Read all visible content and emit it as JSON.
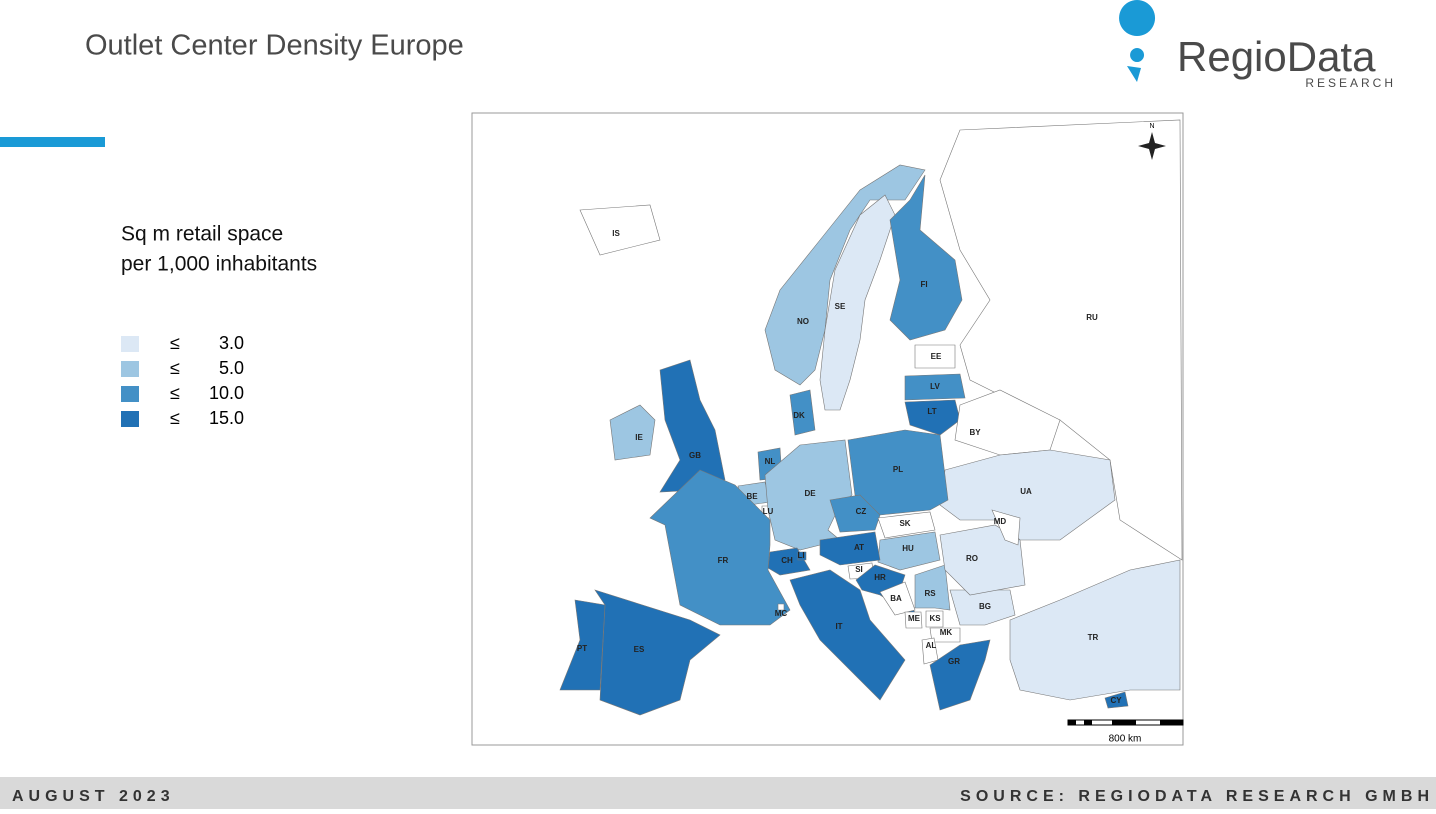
{
  "header": {
    "title": "Outlet Center Density Europe",
    "logo_main": "RegioData",
    "logo_sub": "RESEARCH"
  },
  "legend": {
    "title_lines": [
      "Sq m retail space",
      "per 1,000 inhabitants"
    ],
    "items": [
      {
        "symbol": "≤",
        "value": "3.0",
        "color": "#dce8f5"
      },
      {
        "symbol": "≤",
        "value": "5.0",
        "color": "#9dc6e2"
      },
      {
        "symbol": "≤",
        "value": "10.0",
        "color": "#4390c6"
      },
      {
        "symbol": "≤",
        "value": "15.0",
        "color": "#2171b5"
      }
    ]
  },
  "map": {
    "north": "N",
    "scale": "800 km",
    "countries": [
      {
        "code": "RU",
        "color": "#ffffff"
      },
      {
        "code": "IS",
        "color": "#ffffff"
      },
      {
        "code": "NO",
        "color": "#9dc6e2"
      },
      {
        "code": "SE",
        "color": "#dce8f5"
      },
      {
        "code": "FI",
        "color": "#4390c6"
      },
      {
        "code": "EE",
        "color": "#ffffff"
      },
      {
        "code": "LV",
        "color": "#4390c6"
      },
      {
        "code": "LT",
        "color": "#2171b5"
      },
      {
        "code": "BY",
        "color": "#ffffff"
      },
      {
        "code": "UA",
        "color": "#dce8f5"
      },
      {
        "code": "IE",
        "color": "#9dc6e2"
      },
      {
        "code": "GB",
        "color": "#2171b5"
      },
      {
        "code": "DK",
        "color": "#4390c6"
      },
      {
        "code": "NL",
        "color": "#4390c6"
      },
      {
        "code": "BE",
        "color": "#9dc6e2"
      },
      {
        "code": "LU",
        "color": "#ffffff"
      },
      {
        "code": "DE",
        "color": "#9dc6e2"
      },
      {
        "code": "PL",
        "color": "#4390c6"
      },
      {
        "code": "CZ",
        "color": "#4390c6"
      },
      {
        "code": "SK",
        "color": "#ffffff"
      },
      {
        "code": "HU",
        "color": "#9dc6e2"
      },
      {
        "code": "AT",
        "color": "#2171b5"
      },
      {
        "code": "CH",
        "color": "#2171b5"
      },
      {
        "code": "LI",
        "color": "#2171b5"
      },
      {
        "code": "FR",
        "color": "#4390c6"
      },
      {
        "code": "SI",
        "color": "#ffffff"
      },
      {
        "code": "HR",
        "color": "#2171b5"
      },
      {
        "code": "BA",
        "color": "#ffffff"
      },
      {
        "code": "RS",
        "color": "#9dc6e2"
      },
      {
        "code": "ME",
        "color": "#ffffff"
      },
      {
        "code": "KS",
        "color": "#ffffff"
      },
      {
        "code": "MK",
        "color": "#ffffff"
      },
      {
        "code": "AL",
        "color": "#ffffff"
      },
      {
        "code": "BG",
        "color": "#dce8f5"
      },
      {
        "code": "RO",
        "color": "#dce8f5"
      },
      {
        "code": "MD",
        "color": "#ffffff"
      },
      {
        "code": "GR",
        "color": "#2171b5"
      },
      {
        "code": "IT",
        "color": "#2171b5"
      },
      {
        "code": "MC",
        "color": "#ffffff"
      },
      {
        "code": "ES",
        "color": "#2171b5"
      },
      {
        "code": "PT",
        "color": "#2171b5"
      },
      {
        "code": "TR",
        "color": "#dce8f5"
      },
      {
        "code": "CY",
        "color": "#2171b5"
      }
    ]
  },
  "footer": {
    "date": "AUGUST 2023",
    "source": "SOURCE: REGIODATA RESEARCH GMBH"
  }
}
